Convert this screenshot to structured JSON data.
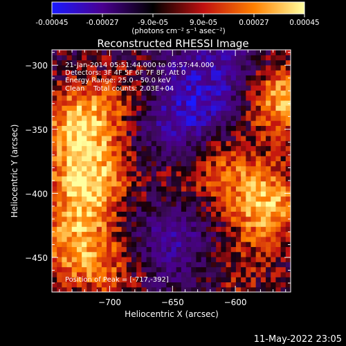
{
  "colorbar": {
    "ticks": [
      "-0.00045",
      "-0.00027",
      "-9.0e-05",
      "9.0e-05",
      "0.00027",
      "0.00045"
    ],
    "tick_values": [
      -0.00045,
      -0.00027,
      -9e-05,
      9e-05,
      0.00027,
      0.00045
    ],
    "range": [
      -0.00045,
      0.00045
    ],
    "units_label": "(photons cm⁻² s⁻¹ asec⁻²)",
    "colors": [
      "#1a1aff",
      "#4a0090",
      "#000000",
      "#c01010",
      "#ff8000",
      "#ffffa0"
    ]
  },
  "chart_data": {
    "type": "heatmap",
    "title": "Reconstructed RHESSI Image",
    "xlabel": "Heliocentric X (arcsec)",
    "ylabel": "Heliocentric Y (arcsec)",
    "xlim": [
      -746,
      -556
    ],
    "ylim": [
      -477,
      -288
    ],
    "xticks": [
      -700,
      -650,
      -600
    ],
    "yticks": [
      -300,
      -350,
      -400,
      -450
    ],
    "annotations": [
      "21-Jan-2014 05:51:44.000 to 05:57:44.000",
      "Detectors: 3F 4F 5F 6F 7F 8F, Att 0",
      "Energy Range: 25.0 - 50.0 keV",
      "Clean    Total counts: 2.03E+04"
    ],
    "peak_label": "Position of Peak = [-717,-392]",
    "peak": [
      -717,
      -392
    ],
    "sources": [
      {
        "x": -722,
        "y": -345,
        "amp": 0.00043
      },
      {
        "x": -717,
        "y": -392,
        "amp": 0.00045
      },
      {
        "x": -730,
        "y": -440,
        "amp": 0.00032
      },
      {
        "x": -565,
        "y": -325,
        "amp": 0.00044
      },
      {
        "x": -575,
        "y": -410,
        "amp": 0.0004
      },
      {
        "x": -610,
        "y": -380,
        "amp": 0.00024
      },
      {
        "x": -680,
        "y": -320,
        "amp": 0.00018
      },
      {
        "x": -700,
        "y": -460,
        "amp": 0.0002
      },
      {
        "x": -600,
        "y": -460,
        "amp": 0.00015
      },
      {
        "x": -650,
        "y": -395,
        "amp": 0.00015
      }
    ],
    "negative_regions": [
      {
        "x": -645,
        "y": -335,
        "amp": -0.0003
      },
      {
        "x": -650,
        "y": -430,
        "amp": -0.00022
      },
      {
        "x": -600,
        "y": -305,
        "amp": -0.00018
      }
    ]
  },
  "footer": {
    "timestamp": "11-May-2022 23:05"
  }
}
